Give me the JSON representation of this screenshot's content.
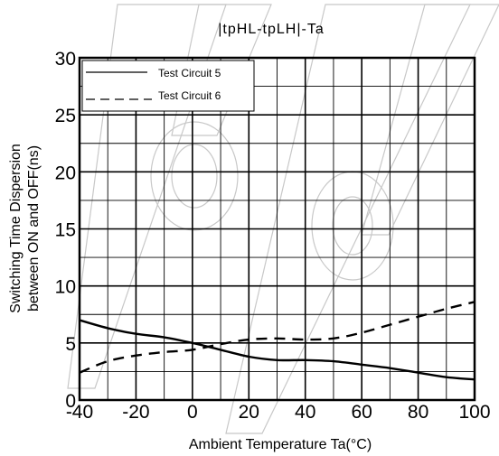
{
  "chart_data": {
    "type": "line",
    "title": "|tpHL-tpLH|-Ta",
    "xlabel": "Ambient Temperature Ta(°C)",
    "ylabel_lines": [
      "Switching Time Dispersion",
      "between ON and OFF(ns)"
    ],
    "xlim": [
      -40,
      100
    ],
    "ylim": [
      0,
      30
    ],
    "xticks": [
      -40,
      -20,
      0,
      20,
      40,
      60,
      80,
      100
    ],
    "yticks": [
      0,
      5,
      10,
      15,
      20,
      25,
      30
    ],
    "x_minor_step": 10,
    "y_minor_step": 2.5,
    "grid": true,
    "legend_position": "top-left",
    "series": [
      {
        "name": "Test Circuit 5",
        "style": "solid",
        "x": [
          -40,
          -30,
          -20,
          -10,
          0,
          10,
          20,
          30,
          40,
          50,
          60,
          70,
          80,
          90,
          100
        ],
        "y": [
          7.0,
          6.3,
          5.8,
          5.5,
          5.0,
          4.4,
          3.8,
          3.5,
          3.5,
          3.4,
          3.1,
          2.8,
          2.4,
          2.0,
          1.8
        ]
      },
      {
        "name": "Test Circuit 6",
        "style": "dashed",
        "x": [
          -40,
          -30,
          -20,
          -10,
          0,
          10,
          20,
          30,
          40,
          50,
          60,
          70,
          80,
          90,
          100
        ],
        "y": [
          2.4,
          3.4,
          3.9,
          4.2,
          4.4,
          4.9,
          5.3,
          5.4,
          5.3,
          5.4,
          5.9,
          6.6,
          7.3,
          8.0,
          8.6
        ]
      }
    ]
  }
}
